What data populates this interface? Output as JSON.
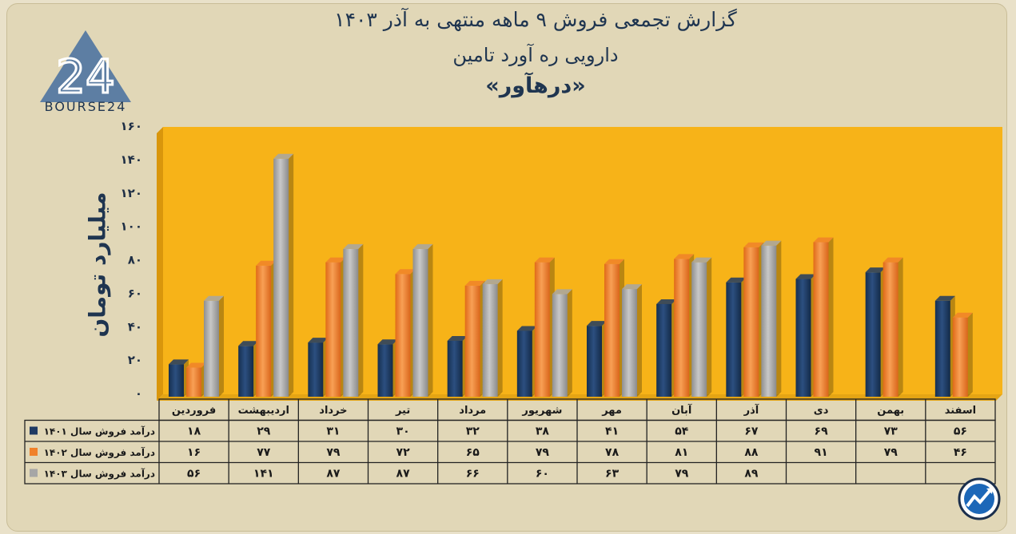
{
  "header": {
    "title_line1": "گزارش تجمعی فروش ۹ ماهه منتهی به آذر ۱۴۰۳",
    "title_line2": "دارویی ره آورد تامین",
    "title_line3": "«درهآور»"
  },
  "brand": {
    "logo_number": "24",
    "logo_text": "BOURSE24"
  },
  "colors": {
    "plot_bg": "#f7b318",
    "s1401": "#1f3a63",
    "s1402": "#f0812a",
    "s1403": "#a6a6a6"
  },
  "chart_data": {
    "type": "bar",
    "ylabel": "میلیارد تومان",
    "ylim": [
      0,
      160
    ],
    "yticks": [
      0,
      20,
      40,
      60,
      80,
      100,
      120,
      140,
      160
    ],
    "ytick_labels": [
      "۰",
      "۲۰",
      "۴۰",
      "۶۰",
      "۸۰",
      "۱۰۰",
      "۱۲۰",
      "۱۴۰",
      "۱۶۰"
    ],
    "grid": false,
    "categories": [
      "فروردین",
      "اردیبهشت",
      "خرداد",
      "تیر",
      "مرداد",
      "شهریور",
      "مهر",
      "آبان",
      "آذر",
      "دی",
      "بهمن",
      "اسفند"
    ],
    "series": [
      {
        "name": "درآمد فروش سال ۱۴۰۱",
        "color": "#1f3a63",
        "values": [
          18,
          29,
          31,
          30,
          32,
          38,
          41,
          54,
          67,
          69,
          73,
          56
        ],
        "labels": [
          "۱۸",
          "۲۹",
          "۳۱",
          "۳۰",
          "۳۲",
          "۳۸",
          "۴۱",
          "۵۴",
          "۶۷",
          "۶۹",
          "۷۳",
          "۵۶"
        ]
      },
      {
        "name": "درآمد فروش سال ۱۴۰۲",
        "color": "#f0812a",
        "values": [
          16,
          77,
          79,
          72,
          65,
          79,
          78,
          81,
          88,
          91,
          79,
          46
        ],
        "labels": [
          "۱۶",
          "۷۷",
          "۷۹",
          "۷۲",
          "۶۵",
          "۷۹",
          "۷۸",
          "۸۱",
          "۸۸",
          "۹۱",
          "۷۹",
          "۴۶"
        ]
      },
      {
        "name": "درآمد فروش سال ۱۴۰۳",
        "color": "#a6a6a6",
        "values": [
          56,
          141,
          87,
          87,
          66,
          60,
          63,
          79,
          89,
          null,
          null,
          null
        ],
        "labels": [
          "۵۶",
          "۱۴۱",
          "۸۷",
          "۸۷",
          "۶۶",
          "۶۰",
          "۶۳",
          "۷۹",
          "۸۹",
          "",
          "",
          ""
        ]
      }
    ]
  }
}
